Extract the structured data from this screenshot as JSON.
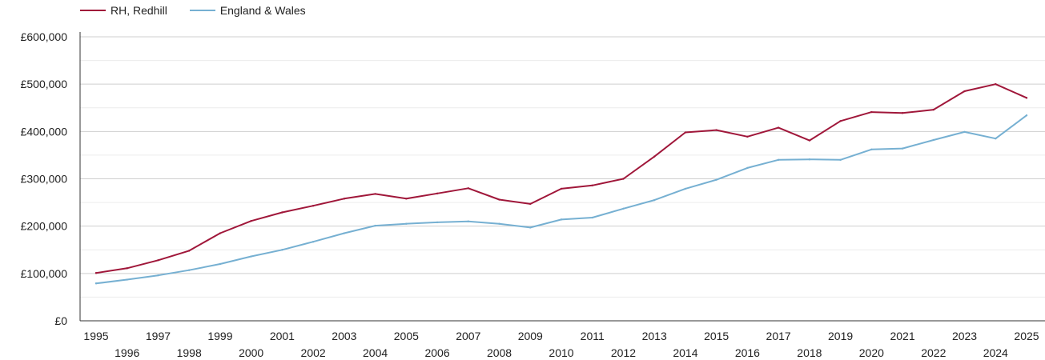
{
  "chart_data": {
    "type": "line",
    "title": "",
    "xlabel": "",
    "ylabel": "",
    "x": [
      1995,
      1996,
      1997,
      1998,
      1999,
      2000,
      2001,
      2002,
      2003,
      2004,
      2005,
      2006,
      2007,
      2008,
      2009,
      2010,
      2011,
      2012,
      2013,
      2014,
      2015,
      2016,
      2017,
      2018,
      2019,
      2020,
      2021,
      2022,
      2023,
      2024,
      2025
    ],
    "y_ticks": [
      "£0",
      "£100,000",
      "£200,000",
      "£300,000",
      "£400,000",
      "£500,000",
      "£600,000"
    ],
    "ylim": [
      0,
      600000
    ],
    "grid": true,
    "legend_position": "top-left",
    "series": [
      {
        "name": "RH, Redhill",
        "color": "#a0173a",
        "values": [
          101000,
          111000,
          128000,
          148000,
          185000,
          211000,
          229000,
          243000,
          258000,
          268000,
          258000,
          269000,
          280000,
          256000,
          247000,
          279000,
          286000,
          300000,
          347000,
          398000,
          403000,
          389000,
          408000,
          381000,
          422000,
          441000,
          439000,
          446000,
          485000,
          500000,
          471000
        ]
      },
      {
        "name": "England & Wales",
        "color": "#76b0d2",
        "values": [
          79000,
          87000,
          96000,
          107000,
          120000,
          136000,
          150000,
          167000,
          185000,
          201000,
          205000,
          208000,
          210000,
          205000,
          197000,
          214000,
          218000,
          237000,
          255000,
          279000,
          298000,
          323000,
          340000,
          341000,
          340000,
          362000,
          364000,
          382000,
          399000,
          385000,
          434000
        ]
      }
    ]
  }
}
